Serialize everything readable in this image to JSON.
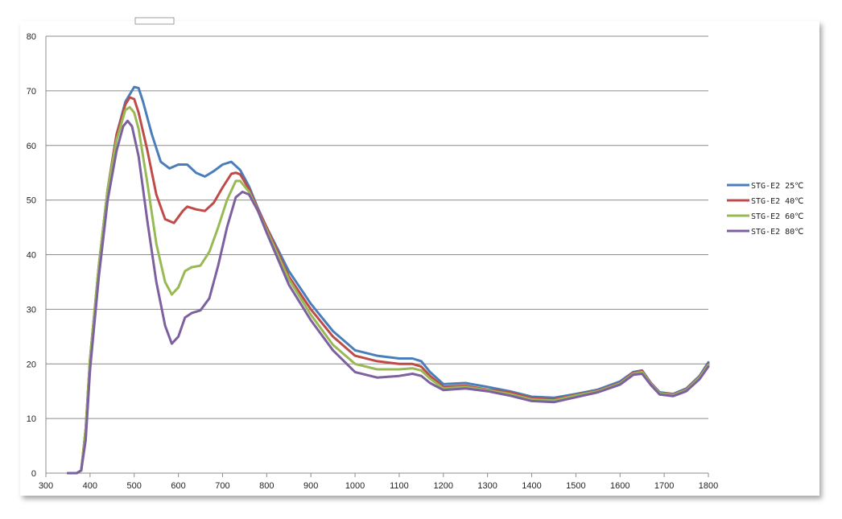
{
  "chart_data": {
    "type": "line",
    "title": "",
    "xlabel": "",
    "ylabel": "",
    "xlim": [
      300,
      1800
    ],
    "ylim": [
      0,
      80
    ],
    "x_ticks": [
      "300",
      "400",
      "500",
      "600",
      "700",
      "800",
      "900",
      "1000",
      "1100",
      "1200",
      "1300",
      "1400",
      "1500",
      "1600",
      "1700",
      "1800"
    ],
    "y_ticks": [
      "0",
      "10",
      "20",
      "30",
      "40",
      "50",
      "60",
      "70",
      "80"
    ],
    "grid": "horizontal",
    "legend_position": "right",
    "series": [
      {
        "name": "STG-E2 25℃",
        "color": "#4a7ebb",
        "points": [
          [
            350,
            0
          ],
          [
            370,
            0
          ],
          [
            380,
            0.5
          ],
          [
            390,
            8
          ],
          [
            400,
            21
          ],
          [
            420,
            38
          ],
          [
            440,
            52
          ],
          [
            460,
            62
          ],
          [
            480,
            68
          ],
          [
            500,
            70.7
          ],
          [
            510,
            70.5
          ],
          [
            520,
            68
          ],
          [
            540,
            62
          ],
          [
            560,
            57
          ],
          [
            580,
            55.8
          ],
          [
            600,
            56.5
          ],
          [
            620,
            56.5
          ],
          [
            640,
            55
          ],
          [
            660,
            54.3
          ],
          [
            680,
            55.3
          ],
          [
            700,
            56.5
          ],
          [
            720,
            57
          ],
          [
            740,
            55.5
          ],
          [
            760,
            52.5
          ],
          [
            780,
            48.5
          ],
          [
            800,
            45
          ],
          [
            850,
            37
          ],
          [
            900,
            31
          ],
          [
            950,
            26
          ],
          [
            1000,
            22.5
          ],
          [
            1050,
            21.5
          ],
          [
            1100,
            21
          ],
          [
            1130,
            21
          ],
          [
            1150,
            20.5
          ],
          [
            1170,
            18.5
          ],
          [
            1200,
            16.3
          ],
          [
            1250,
            16.5
          ],
          [
            1300,
            15.8
          ],
          [
            1350,
            15
          ],
          [
            1400,
            14
          ],
          [
            1450,
            13.8
          ],
          [
            1500,
            14.5
          ],
          [
            1550,
            15.3
          ],
          [
            1600,
            16.8
          ],
          [
            1630,
            18.5
          ],
          [
            1650,
            18.8
          ],
          [
            1670,
            16.5
          ],
          [
            1690,
            14.8
          ],
          [
            1720,
            14.5
          ],
          [
            1750,
            15.5
          ],
          [
            1780,
            17.8
          ],
          [
            1800,
            20.3
          ]
        ]
      },
      {
        "name": "STG-E2 40℃",
        "color": "#be4b48",
        "points": [
          [
            350,
            0
          ],
          [
            370,
            0
          ],
          [
            380,
            0.5
          ],
          [
            390,
            8
          ],
          [
            400,
            21
          ],
          [
            420,
            38
          ],
          [
            440,
            52
          ],
          [
            460,
            62
          ],
          [
            480,
            67.5
          ],
          [
            490,
            68.8
          ],
          [
            500,
            68.5
          ],
          [
            510,
            66
          ],
          [
            530,
            59
          ],
          [
            550,
            51
          ],
          [
            570,
            46.5
          ],
          [
            590,
            45.8
          ],
          [
            610,
            48
          ],
          [
            620,
            48.8
          ],
          [
            640,
            48.3
          ],
          [
            660,
            48
          ],
          [
            680,
            49.5
          ],
          [
            700,
            52.3
          ],
          [
            720,
            54.8
          ],
          [
            730,
            55
          ],
          [
            740,
            54.7
          ],
          [
            760,
            52
          ],
          [
            780,
            48.3
          ],
          [
            800,
            45
          ],
          [
            850,
            36
          ],
          [
            900,
            30
          ],
          [
            950,
            25
          ],
          [
            1000,
            21.5
          ],
          [
            1050,
            20.5
          ],
          [
            1100,
            20
          ],
          [
            1130,
            20
          ],
          [
            1150,
            19.5
          ],
          [
            1170,
            17.8
          ],
          [
            1200,
            15.8
          ],
          [
            1250,
            16
          ],
          [
            1300,
            15.3
          ],
          [
            1350,
            14.8
          ],
          [
            1400,
            13.7
          ],
          [
            1450,
            13.5
          ],
          [
            1500,
            14.3
          ],
          [
            1550,
            15.1
          ],
          [
            1600,
            16.5
          ],
          [
            1630,
            18.4
          ],
          [
            1650,
            18.7
          ],
          [
            1670,
            16.4
          ],
          [
            1690,
            14.7
          ],
          [
            1720,
            14.4
          ],
          [
            1750,
            15.3
          ],
          [
            1780,
            17.6
          ],
          [
            1800,
            20
          ]
        ]
      },
      {
        "name": "STG-E2 60℃",
        "color": "#98b954",
        "points": [
          [
            350,
            0
          ],
          [
            370,
            0
          ],
          [
            380,
            0.5
          ],
          [
            390,
            8
          ],
          [
            400,
            21
          ],
          [
            420,
            38
          ],
          [
            440,
            52
          ],
          [
            460,
            61
          ],
          [
            480,
            66.5
          ],
          [
            490,
            67
          ],
          [
            500,
            66
          ],
          [
            510,
            63
          ],
          [
            530,
            53
          ],
          [
            550,
            42
          ],
          [
            570,
            35
          ],
          [
            585,
            32.7
          ],
          [
            600,
            34
          ],
          [
            615,
            37
          ],
          [
            630,
            37.7
          ],
          [
            650,
            38
          ],
          [
            670,
            40.5
          ],
          [
            690,
            45
          ],
          [
            710,
            50
          ],
          [
            730,
            53.5
          ],
          [
            740,
            53.5
          ],
          [
            760,
            51.5
          ],
          [
            780,
            48
          ],
          [
            800,
            44.5
          ],
          [
            850,
            35.5
          ],
          [
            900,
            29
          ],
          [
            950,
            23.5
          ],
          [
            1000,
            20
          ],
          [
            1050,
            19
          ],
          [
            1100,
            19
          ],
          [
            1130,
            19.2
          ],
          [
            1150,
            18.8
          ],
          [
            1170,
            17.3
          ],
          [
            1200,
            15.5
          ],
          [
            1250,
            15.8
          ],
          [
            1300,
            15.2
          ],
          [
            1350,
            14.5
          ],
          [
            1400,
            13.5
          ],
          [
            1450,
            13.3
          ],
          [
            1500,
            14.2
          ],
          [
            1550,
            15
          ],
          [
            1600,
            16.4
          ],
          [
            1630,
            18.2
          ],
          [
            1650,
            18.5
          ],
          [
            1670,
            16.3
          ],
          [
            1690,
            14.6
          ],
          [
            1720,
            14.3
          ],
          [
            1750,
            15.2
          ],
          [
            1780,
            17.5
          ],
          [
            1800,
            19.8
          ]
        ]
      },
      {
        "name": "STG-E2 80℃",
        "color": "#7d60a0",
        "points": [
          [
            350,
            0
          ],
          [
            370,
            0
          ],
          [
            380,
            0.5
          ],
          [
            390,
            6
          ],
          [
            400,
            19
          ],
          [
            420,
            36
          ],
          [
            440,
            50
          ],
          [
            460,
            59
          ],
          [
            475,
            63.5
          ],
          [
            485,
            64.5
          ],
          [
            495,
            63.5
          ],
          [
            510,
            58
          ],
          [
            530,
            46
          ],
          [
            550,
            35
          ],
          [
            570,
            27
          ],
          [
            585,
            23.7
          ],
          [
            600,
            25
          ],
          [
            615,
            28.5
          ],
          [
            630,
            29.3
          ],
          [
            650,
            29.8
          ],
          [
            670,
            32
          ],
          [
            690,
            38
          ],
          [
            710,
            45
          ],
          [
            730,
            50.5
          ],
          [
            745,
            51.5
          ],
          [
            760,
            51
          ],
          [
            780,
            48
          ],
          [
            800,
            44
          ],
          [
            850,
            34.5
          ],
          [
            900,
            28
          ],
          [
            950,
            22.5
          ],
          [
            1000,
            18.5
          ],
          [
            1050,
            17.5
          ],
          [
            1100,
            17.8
          ],
          [
            1130,
            18.2
          ],
          [
            1150,
            17.8
          ],
          [
            1170,
            16.5
          ],
          [
            1200,
            15.2
          ],
          [
            1250,
            15.5
          ],
          [
            1300,
            15
          ],
          [
            1350,
            14.2
          ],
          [
            1400,
            13.2
          ],
          [
            1450,
            13
          ],
          [
            1500,
            13.9
          ],
          [
            1550,
            14.8
          ],
          [
            1600,
            16.2
          ],
          [
            1630,
            18
          ],
          [
            1650,
            18.2
          ],
          [
            1670,
            16.1
          ],
          [
            1690,
            14.4
          ],
          [
            1720,
            14.1
          ],
          [
            1750,
            15
          ],
          [
            1780,
            17.2
          ],
          [
            1800,
            19.5
          ]
        ]
      }
    ]
  }
}
